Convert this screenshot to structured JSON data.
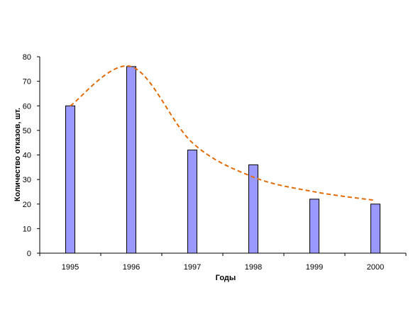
{
  "chart_data": {
    "type": "bar",
    "categories": [
      "1995",
      "1996",
      "1997",
      "1998",
      "1999",
      "2000"
    ],
    "values": [
      60,
      76,
      42,
      36,
      22,
      20
    ],
    "xlabel": "Годы",
    "ylabel": "Количество отказов, шт.",
    "ylim": [
      0,
      80
    ],
    "yticks": [
      "0",
      "10",
      "20",
      "30",
      "40",
      "50",
      "60",
      "70",
      "80"
    ],
    "trend": {
      "type": "smoothed-line",
      "style": "dashed",
      "points": [
        {
          "x": "1995",
          "y": 60
        },
        {
          "x": "1996",
          "y": 76
        },
        {
          "x": "1997",
          "y": 45
        },
        {
          "x": "1998",
          "y": 31
        },
        {
          "x": "1999",
          "y": 25
        },
        {
          "x": "2000",
          "y": 21.5
        }
      ]
    },
    "grid": false,
    "legend": "none",
    "colors": {
      "bar_fill": "#9999ff",
      "bar_stroke": "#000000",
      "trend": "#e36c0a",
      "axis": "#000000"
    }
  }
}
